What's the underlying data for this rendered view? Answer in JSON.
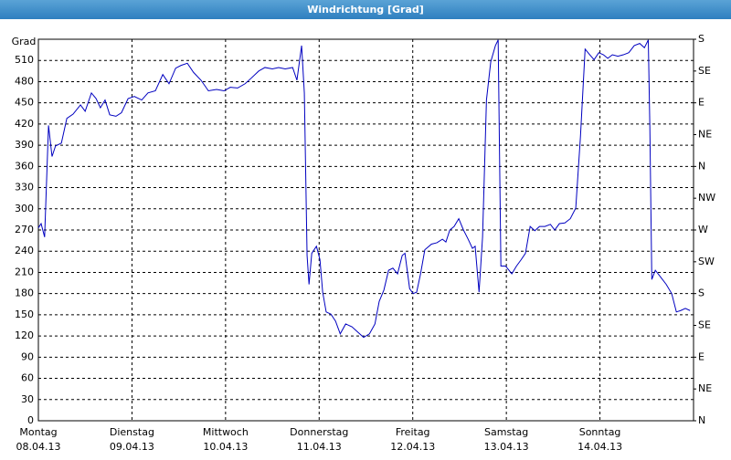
{
  "chart_data": {
    "type": "line",
    "title": "Windrichtung [Grad]",
    "y_label": "Grad",
    "color": "#0000c0",
    "grid": true,
    "xlim": [
      0,
      168
    ],
    "xticks": [
      {
        "value": 0,
        "label": "Montag"
      },
      {
        "value": 24,
        "label": "Dienstag"
      },
      {
        "value": 48,
        "label": "Mittwoch"
      },
      {
        "value": 72,
        "label": "Donnerstag"
      },
      {
        "value": 96,
        "label": "Freitag"
      },
      {
        "value": 120,
        "label": "Samstag"
      },
      {
        "value": 144,
        "label": "Sonntag"
      }
    ],
    "xtick_dates": [
      "08.04.13",
      "09.04.13",
      "10.04.13",
      "11.04.13",
      "12.04.13",
      "13.04.13",
      "14.04.13"
    ],
    "ylim": [
      0,
      540
    ],
    "yticks": [
      0,
      30,
      60,
      90,
      120,
      150,
      180,
      210,
      240,
      270,
      300,
      330,
      360,
      390,
      420,
      450,
      480,
      510
    ],
    "y2lim": [
      0,
      540
    ],
    "y2ticks": [
      {
        "value": 0,
        "label": "N"
      },
      {
        "value": 45,
        "label": "NE"
      },
      {
        "value": 90,
        "label": "E"
      },
      {
        "value": 135,
        "label": "SE"
      },
      {
        "value": 180,
        "label": "S"
      },
      {
        "value": 225,
        "label": "SW"
      },
      {
        "value": 270,
        "label": "W"
      },
      {
        "value": 315,
        "label": "NW"
      },
      {
        "value": 360,
        "label": "N"
      },
      {
        "value": 405,
        "label": "NE"
      },
      {
        "value": 450,
        "label": "E"
      },
      {
        "value": 495,
        "label": "SE"
      },
      {
        "value": 540,
        "label": "S"
      }
    ],
    "x": [
      0,
      0.7,
      1.6,
      2.6,
      3.5,
      4.4,
      5.9,
      7.3,
      8.9,
      10.8,
      12.0,
      13.6,
      14.8,
      15.9,
      17.1,
      18.3,
      19.9,
      21.3,
      23.0,
      24.6,
      26.5,
      28.1,
      30.0,
      31.9,
      33.5,
      35.2,
      36.6,
      38.2,
      39.8,
      41.7,
      43.6,
      45.7,
      47.6,
      49.2,
      51.1,
      53.0,
      54.6,
      56.5,
      58.1,
      60.0,
      61.6,
      63.3,
      65.2,
      66.3,
      67.5,
      68.2,
      68.9,
      69.4,
      70.1,
      71.3,
      72.2,
      72.9,
      73.8,
      75.0,
      76.2,
      77.4,
      78.8,
      80.4,
      82.0,
      83.4,
      84.9,
      86.3,
      87.4,
      88.6,
      89.8,
      90.9,
      92.1,
      93.3,
      94.0,
      95.2,
      96.1,
      97.0,
      98.0,
      99.1,
      100.8,
      102.2,
      103.6,
      104.5,
      105.5,
      106.6,
      107.8,
      109.0,
      110.2,
      111.3,
      112.0,
      113.0,
      113.9,
      114.9,
      116.0,
      117.2,
      117.9,
      118.6,
      119.8,
      121.4,
      122.6,
      123.8,
      124.9,
      126.1,
      127.3,
      128.5,
      129.9,
      131.3,
      132.4,
      133.6,
      135.0,
      136.4,
      137.8,
      139.0,
      140.2,
      141.4,
      142.5,
      143.7,
      144.9,
      146.0,
      147.2,
      148.6,
      150.0,
      151.4,
      152.8,
      154.2,
      155.4,
      156.4,
      156.8,
      157.3,
      158.2,
      159.6,
      161.0,
      162.4,
      163.6,
      164.7,
      165.9,
      167.1
    ],
    "values": [
      273,
      279,
      260,
      418,
      374,
      389,
      393,
      428,
      434,
      447,
      438,
      464,
      456,
      443,
      454,
      433,
      431,
      436,
      456,
      459,
      454,
      464,
      467,
      490,
      477,
      499,
      503,
      506,
      493,
      482,
      467,
      469,
      467,
      472,
      471,
      477,
      485,
      495,
      500,
      498,
      500,
      498,
      500,
      482,
      531,
      464,
      234,
      193,
      237,
      247,
      228,
      182,
      154,
      151,
      141,
      123,
      137,
      133,
      125,
      118,
      123,
      137,
      169,
      185,
      213,
      216,
      208,
      234,
      237,
      187,
      180,
      182,
      208,
      242,
      250,
      252,
      257,
      253,
      270,
      275,
      286,
      270,
      257,
      244,
      247,
      182,
      260,
      454,
      508,
      531,
      539,
      219,
      219,
      208,
      219,
      228,
      237,
      275,
      269,
      275,
      275,
      278,
      270,
      279,
      280,
      286,
      301,
      402,
      526,
      518,
      511,
      521,
      518,
      513,
      518,
      516,
      518,
      521,
      531,
      534,
      528,
      539,
      415,
      200,
      213,
      203,
      193,
      180,
      154,
      156,
      159,
      156
    ]
  }
}
